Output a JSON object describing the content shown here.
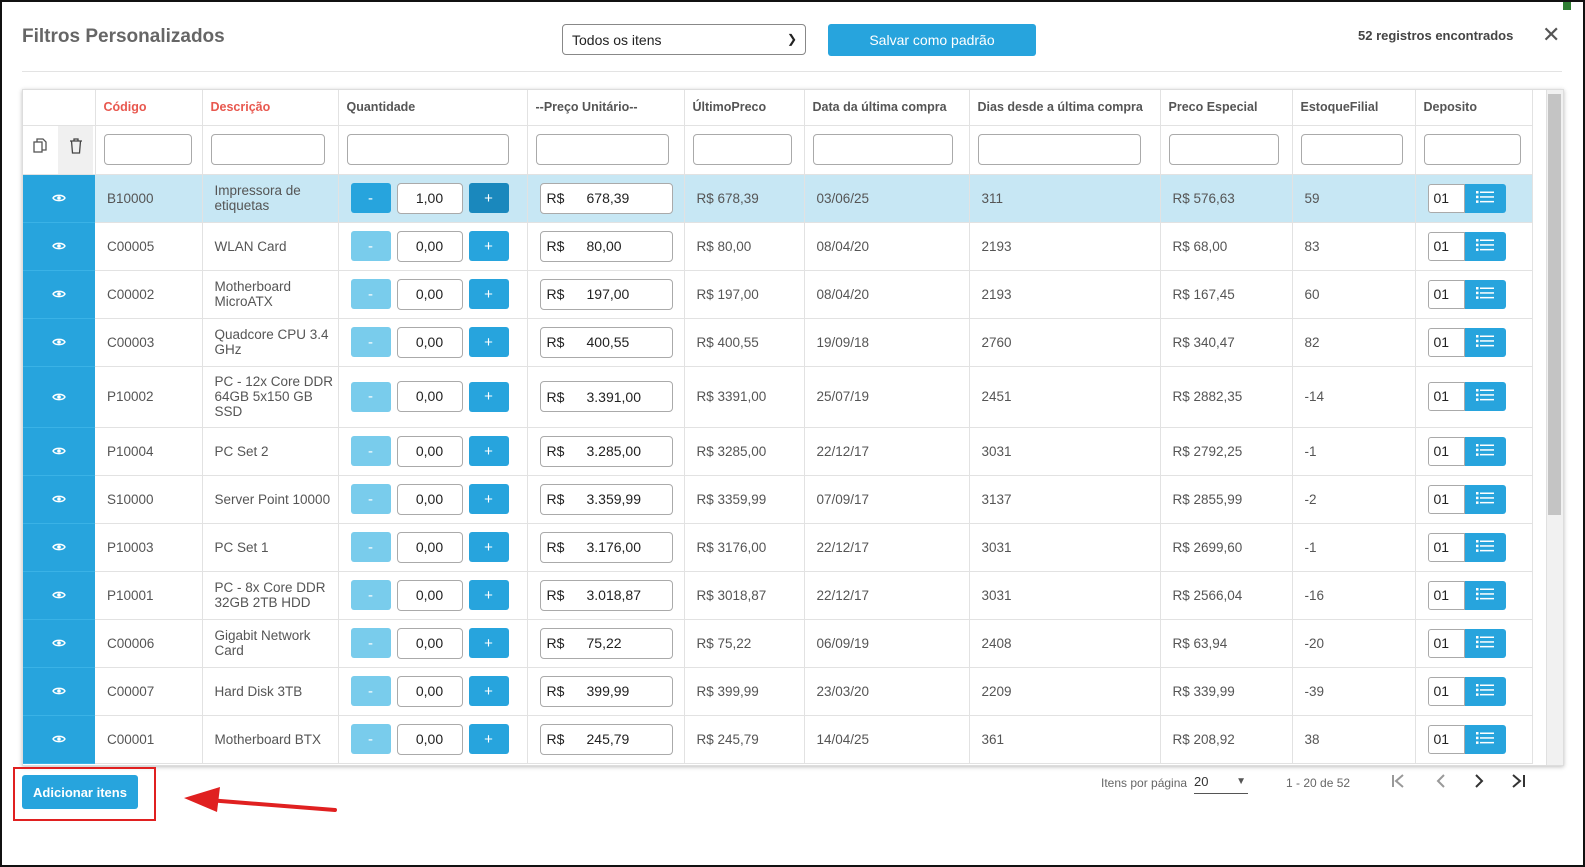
{
  "header": {
    "title": "Filtros Personalizados",
    "filter_select": "Todos os itens",
    "save_label": "Salvar como padrão",
    "count": "52 registros encontrados"
  },
  "columns": [
    "Código",
    "Descrição",
    "Quantidade",
    "--Preço Unitário--",
    "ÚltimoPreco",
    "Data da última compra",
    "Dias desde a última compra",
    "Preco Especial",
    "EstoqueFilial",
    "Deposito"
  ],
  "currency": "R$",
  "rows": [
    {
      "code": "B10000",
      "desc": "Impressora de etiquetas",
      "qty": "1,00",
      "price": "678,39",
      "last": "R$ 678,39",
      "date": "03/06/25",
      "days": "311",
      "special": "R$ 576,63",
      "stock": "59",
      "dep": "01"
    },
    {
      "code": "C00005",
      "desc": "WLAN Card",
      "qty": "0,00",
      "price": "80,00",
      "last": "R$ 80,00",
      "date": "08/04/20",
      "days": "2193",
      "special": "R$ 68,00",
      "stock": "83",
      "dep": "01"
    },
    {
      "code": "C00002",
      "desc": "Motherboard MicroATX",
      "qty": "0,00",
      "price": "197,00",
      "last": "R$ 197,00",
      "date": "08/04/20",
      "days": "2193",
      "special": "R$ 167,45",
      "stock": "60",
      "dep": "01"
    },
    {
      "code": "C00003",
      "desc": "Quadcore CPU 3.4 GHz",
      "qty": "0,00",
      "price": "400,55",
      "last": "R$ 400,55",
      "date": "19/09/18",
      "days": "2760",
      "special": "R$ 340,47",
      "stock": "82",
      "dep": "01"
    },
    {
      "code": "P10002",
      "desc": "PC - 12x Core DDR 64GB 5x150 GB SSD",
      "qty": "0,00",
      "price": "3.391,00",
      "last": "R$ 3391,00",
      "date": "25/07/19",
      "days": "2451",
      "special": "R$ 2882,35",
      "stock": "-14",
      "dep": "01"
    },
    {
      "code": "P10004",
      "desc": "PC Set 2",
      "qty": "0,00",
      "price": "3.285,00",
      "last": "R$ 3285,00",
      "date": "22/12/17",
      "days": "3031",
      "special": "R$ 2792,25",
      "stock": "-1",
      "dep": "01"
    },
    {
      "code": "S10000",
      "desc": "Server Point 10000",
      "qty": "0,00",
      "price": "3.359,99",
      "last": "R$ 3359,99",
      "date": "07/09/17",
      "days": "3137",
      "special": "R$ 2855,99",
      "stock": "-2",
      "dep": "01"
    },
    {
      "code": "P10003",
      "desc": "PC Set 1",
      "qty": "0,00",
      "price": "3.176,00",
      "last": "R$ 3176,00",
      "date": "22/12/17",
      "days": "3031",
      "special": "R$ 2699,60",
      "stock": "-1",
      "dep": "01"
    },
    {
      "code": "P10001",
      "desc": "PC - 8x Core DDR 32GB 2TB HDD",
      "qty": "0,00",
      "price": "3.018,87",
      "last": "R$ 3018,87",
      "date": "22/12/17",
      "days": "3031",
      "special": "R$ 2566,04",
      "stock": "-16",
      "dep": "01"
    },
    {
      "code": "C00006",
      "desc": "Gigabit Network Card",
      "qty": "0,00",
      "price": "75,22",
      "last": "R$ 75,22",
      "date": "06/09/19",
      "days": "2408",
      "special": "R$ 63,94",
      "stock": "-20",
      "dep": "01"
    },
    {
      "code": "C00007",
      "desc": "Hard Disk 3TB",
      "qty": "0,00",
      "price": "399,99",
      "last": "R$ 399,99",
      "date": "23/03/20",
      "days": "2209",
      "special": "R$ 339,99",
      "stock": "-39",
      "dep": "01"
    },
    {
      "code": "C00001",
      "desc": "Motherboard BTX",
      "qty": "0,00",
      "price": "245,79",
      "last": "R$ 245,79",
      "date": "14/04/25",
      "days": "361",
      "special": "R$ 208,92",
      "stock": "38",
      "dep": "01"
    }
  ],
  "qty_buttons": {
    "minus": "-",
    "plus": "+"
  },
  "footer": {
    "add_label": "Adicionar itens",
    "per_page_label": "Itens por página",
    "per_page_value": "20",
    "range": "1 - 20 de 52"
  }
}
